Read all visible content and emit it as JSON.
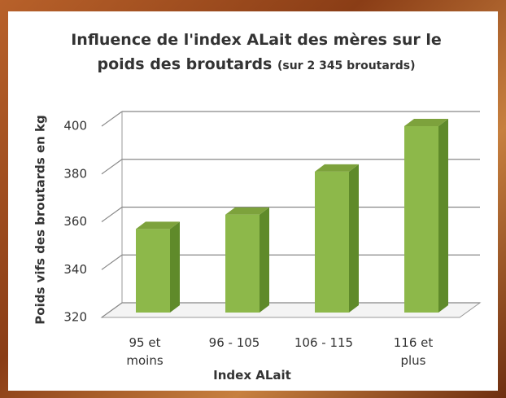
{
  "chart_data": {
    "type": "bar3d",
    "title": "Influence de l'index ALait des mères sur le poids des broutards",
    "subtitle": "(sur 2 345 broutards)",
    "xlabel": "Index ALait",
    "ylabel": "Poids vifs des broutards en kg",
    "categories": [
      "95 et moins",
      "96 - 105",
      "106 - 115",
      "116 et plus"
    ],
    "values": [
      357,
      363,
      381,
      400
    ],
    "color": "#8db84a",
    "ylim": [
      320,
      400
    ],
    "yticks": [
      320,
      340,
      360,
      380,
      400
    ],
    "grid": true
  }
}
